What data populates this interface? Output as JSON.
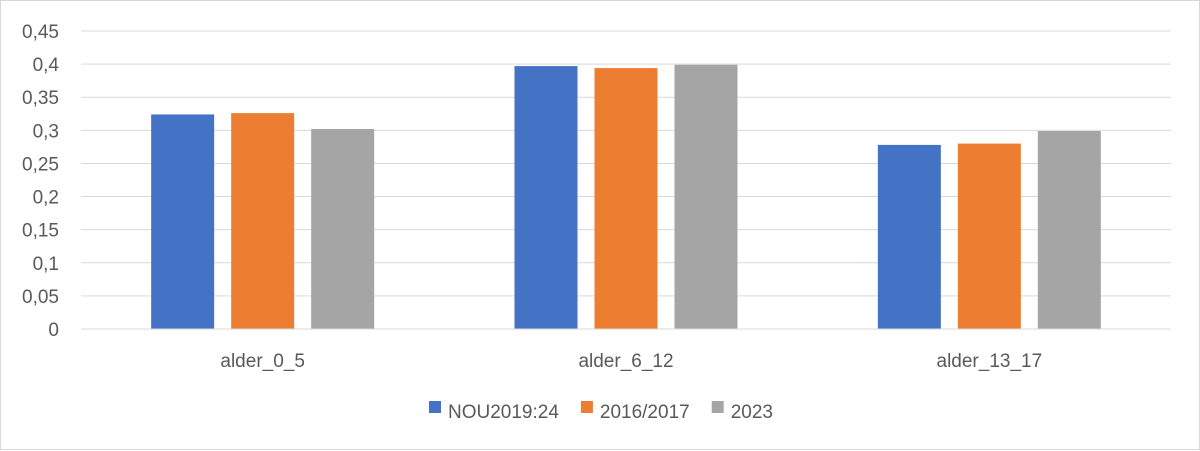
{
  "chart_data": {
    "type": "bar",
    "title": "",
    "xlabel": "",
    "ylabel": "",
    "categories": [
      "alder_0_5",
      "alder_6_12",
      "alder_13_17"
    ],
    "series": [
      {
        "name": "NOU2019:24",
        "color": "#4472c4",
        "values": [
          0.324,
          0.397,
          0.278
        ]
      },
      {
        "name": "2016/2017",
        "color": "#ed7d31",
        "values": [
          0.326,
          0.394,
          0.28
        ]
      },
      {
        "name": "2023",
        "color": "#a5a5a5",
        "values": [
          0.302,
          0.399,
          0.299
        ]
      }
    ],
    "ylim": [
      0,
      0.45
    ],
    "yticks": [
      "0",
      "0,05",
      "0,1",
      "0,15",
      "0,2",
      "0,25",
      "0,3",
      "0,35",
      "0,4",
      "0,45"
    ],
    "grid": true,
    "legend_position": "bottom"
  }
}
